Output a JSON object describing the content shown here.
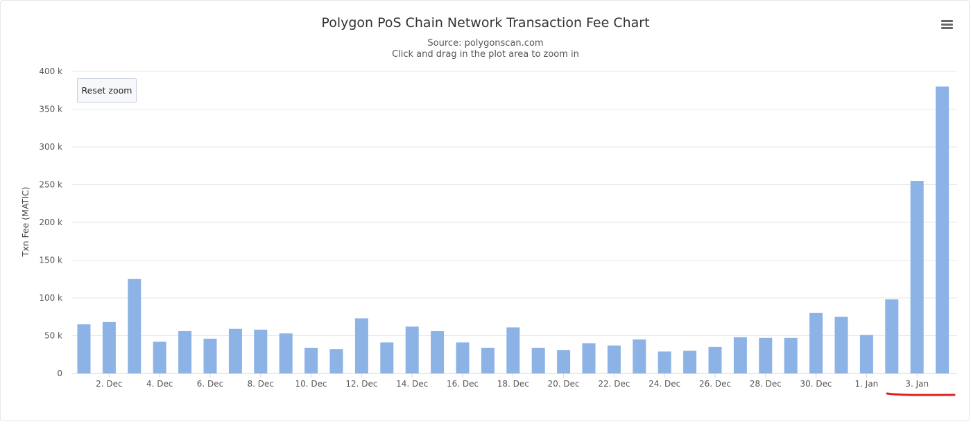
{
  "chart_data": {
    "type": "bar",
    "title": "Polygon PoS Chain Network Transaction Fee Chart",
    "subtitle": "Source: polygonscan.com",
    "subtitle2": "Click and drag in the plot area to zoom in",
    "ylabel": "Txn Fee (MATIC)",
    "xlabel": "",
    "ylim": [
      0,
      400000
    ],
    "y_ticks": [
      0,
      50000,
      100000,
      150000,
      200000,
      250000,
      300000,
      350000,
      400000
    ],
    "y_tick_labels": [
      "0",
      "50 k",
      "100 k",
      "150 k",
      "200 k",
      "250 k",
      "300 k",
      "350 k",
      "400 k"
    ],
    "x_tick_labels": [
      "2. Dec",
      "4. Dec",
      "6. Dec",
      "8. Dec",
      "10. Dec",
      "12. Dec",
      "14. Dec",
      "16. Dec",
      "18. Dec",
      "20. Dec",
      "22. Dec",
      "24. Dec",
      "26. Dec",
      "28. Dec",
      "30. Dec",
      "1. Jan",
      "3. Jan"
    ],
    "categories": [
      "1. Dec",
      "2. Dec",
      "3. Dec",
      "4. Dec",
      "5. Dec",
      "6. Dec",
      "7. Dec",
      "8. Dec",
      "9. Dec",
      "10. Dec",
      "11. Dec",
      "12. Dec",
      "13. Dec",
      "14. Dec",
      "15. Dec",
      "16. Dec",
      "17. Dec",
      "18. Dec",
      "19. Dec",
      "20. Dec",
      "21. Dec",
      "22. Dec",
      "23. Dec",
      "24. Dec",
      "25. Dec",
      "26. Dec",
      "27. Dec",
      "28. Dec",
      "29. Dec",
      "30. Dec",
      "31. Dec",
      "1. Jan",
      "2. Jan",
      "3. Jan",
      "4. Jan"
    ],
    "values": [
      65000,
      68000,
      125000,
      42000,
      56000,
      46000,
      59000,
      58000,
      53000,
      34000,
      32000,
      73000,
      41000,
      62000,
      56000,
      41000,
      34000,
      61000,
      34000,
      31000,
      40000,
      37000,
      45000,
      29000,
      30000,
      35000,
      48000,
      47000,
      47000,
      80000,
      75000,
      51000,
      98000,
      255000,
      380000
    ],
    "bar_color": "#8cb2e6",
    "grid": true,
    "legend": "none"
  },
  "ui": {
    "reset_zoom_label": "Reset zoom",
    "menu_icon": "hamburger-menu-icon"
  }
}
